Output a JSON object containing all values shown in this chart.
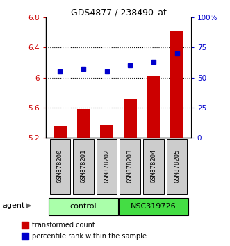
{
  "title": "GDS4877 / 238490_at",
  "samples": [
    "GSM878200",
    "GSM878201",
    "GSM878202",
    "GSM878203",
    "GSM878204",
    "GSM878205"
  ],
  "bar_values": [
    5.35,
    5.58,
    5.37,
    5.72,
    6.02,
    6.62
  ],
  "dot_values": [
    55,
    57,
    55,
    60,
    63,
    70
  ],
  "ylim_left": [
    5.2,
    6.8
  ],
  "ylim_right": [
    0,
    100
  ],
  "yticks_left": [
    5.2,
    5.6,
    6.0,
    6.4,
    6.8
  ],
  "yticks_right": [
    0,
    25,
    50,
    75,
    100
  ],
  "ytick_labels_left": [
    "5.2",
    "5.6",
    "6",
    "6.4",
    "6.8"
  ],
  "ytick_labels_right": [
    "0",
    "25",
    "50",
    "75",
    "100%"
  ],
  "bar_color": "#cc0000",
  "dot_color": "#0000cc",
  "background_plot": "#ffffff",
  "group_labels": [
    "control",
    "NSC319726"
  ],
  "group_colors": [
    "#aaffaa",
    "#44dd44"
  ],
  "agent_label": "agent",
  "legend_bar": "transformed count",
  "legend_dot": "percentile rank within the sample",
  "ylabel_left_color": "#cc0000",
  "ylabel_right_color": "#0000cc",
  "figsize": [
    3.31,
    3.54
  ],
  "dpi": 100,
  "grid_lines": [
    5.6,
    6.0,
    6.4
  ],
  "label_gray": "#cccccc"
}
